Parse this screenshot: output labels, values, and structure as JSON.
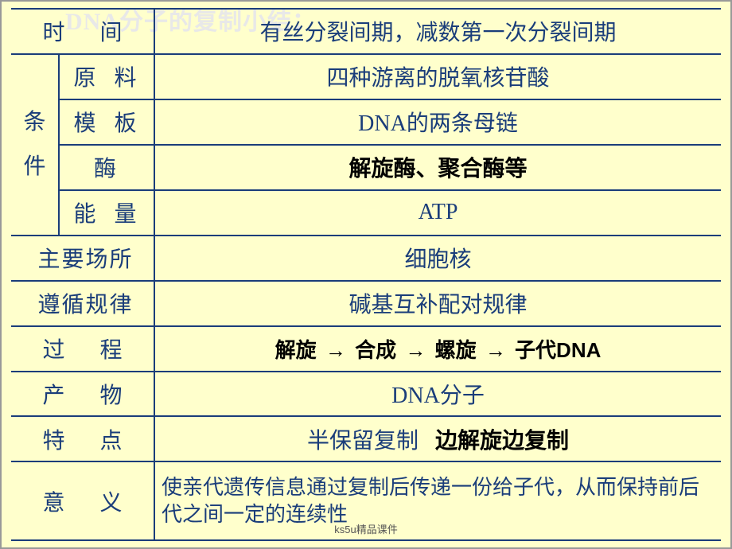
{
  "slide": {
    "title": "DNA分子的复制小结：",
    "footnote": "ks5u精品课件"
  },
  "table": {
    "border_color": "#1a3d7a",
    "text_color": "#1a3d7a",
    "bold_color": "#000000",
    "background_color": "#ffffcc",
    "title_color": "#e8e8e8",
    "rows": {
      "time": {
        "label": "时　间",
        "value": "有丝分裂间期，减数第一次分裂间期"
      },
      "condition_group": "条件",
      "raw": {
        "label": "原 料",
        "value": "四种游离的脱氧核苷酸"
      },
      "template": {
        "label": "模 板",
        "value": "DNA的两条母链"
      },
      "enzyme": {
        "label": "酶",
        "value": "解旋酶、聚合酶等"
      },
      "energy": {
        "label": "能 量",
        "value": "ATP"
      },
      "place": {
        "label": "主要场所",
        "value": "细胞核"
      },
      "rule": {
        "label": "遵循规律",
        "value": "碱基互补配对规律"
      },
      "process": {
        "label": "过　程",
        "steps": [
          "解旋",
          "合成",
          "螺旋",
          "子代DNA"
        ]
      },
      "product": {
        "label": "产　物",
        "value": "DNA分子"
      },
      "feature": {
        "label": "特　点",
        "value1": "半保留复制",
        "value2": "边解旋边复制"
      },
      "meaning": {
        "label": "意　义",
        "value": "使亲代遗传信息通过复制后传递一份给子代，从而保持前后代之间一定的连续性"
      }
    }
  }
}
